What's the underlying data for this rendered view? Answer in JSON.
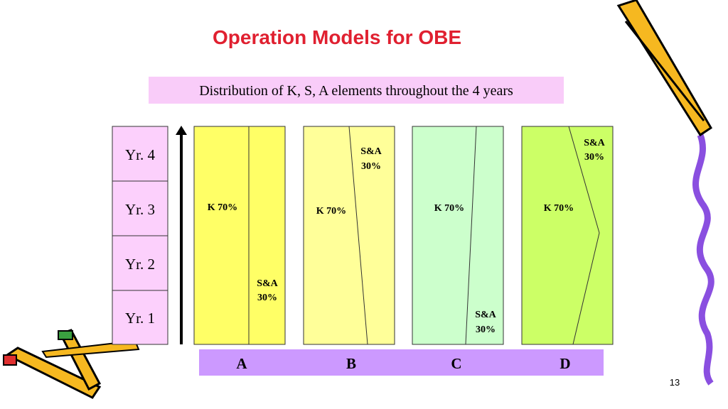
{
  "title": "Operation Models for OBE",
  "subtitle": "Distribution of K, S, A elements throughout the 4 years",
  "years": [
    "Yr. 4",
    "Yr. 3",
    "Yr. 2",
    "Yr. 1"
  ],
  "models": [
    {
      "name": "A",
      "k_label": "K 70%",
      "sa_label": [
        "S&A",
        "30%"
      ]
    },
    {
      "name": "B",
      "k_label": "K 70%",
      "sa_label": [
        "S&A",
        "30%"
      ]
    },
    {
      "name": "C",
      "k_label": "K 70%",
      "sa_label": [
        "S&A",
        "30%"
      ]
    },
    {
      "name": "D",
      "k_label": "K 70%",
      "sa_label": [
        "S&A",
        "30%"
      ]
    }
  ],
  "page_number": "13"
}
